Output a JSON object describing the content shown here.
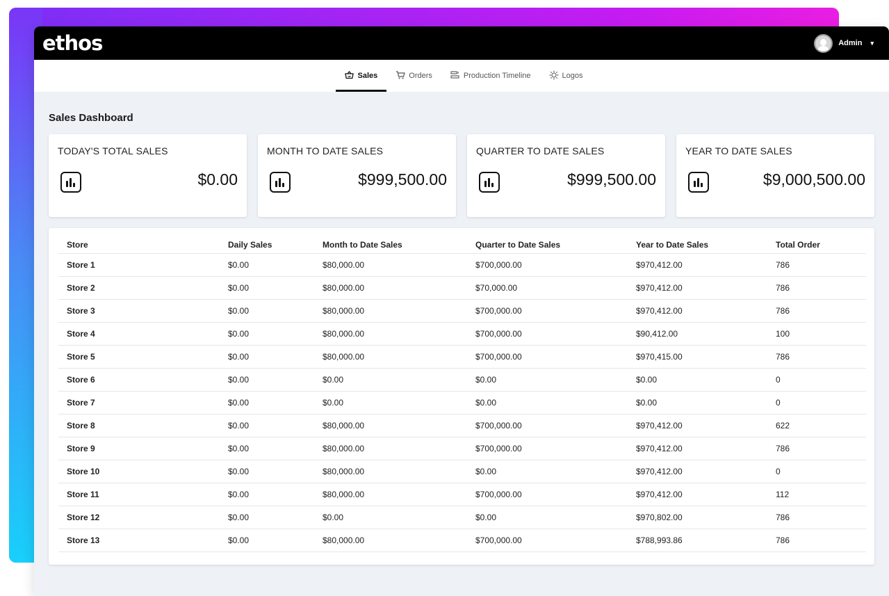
{
  "app": {
    "logo": "ethos"
  },
  "user": {
    "name": "Admin",
    "chevron": "⌄"
  },
  "tabs": [
    {
      "label": "Sales",
      "icon": "cart-basket-icon",
      "active": true
    },
    {
      "label": "Orders",
      "icon": "shopping-cart-icon",
      "active": false
    },
    {
      "label": "Production Timeline",
      "icon": "timeline-icon",
      "active": false
    },
    {
      "label": "Logos",
      "icon": "sparkle-icon",
      "active": false
    }
  ],
  "page": {
    "title": "Sales Dashboard"
  },
  "cards": [
    {
      "title": "TODAY'S TOTAL SALES",
      "value": "$0.00"
    },
    {
      "title": "MONTH TO DATE SALES",
      "value": "$999,500.00"
    },
    {
      "title": "QUARTER TO DATE SALES",
      "value": "$999,500.00"
    },
    {
      "title": "YEAR TO DATE SALES",
      "value": "$9,000,500.00"
    }
  ],
  "table": {
    "headers": [
      "Store",
      "Daily Sales",
      "Month to Date Sales",
      "Quarter to Date Sales",
      "Year to Date Sales",
      "Total Order"
    ],
    "rows": [
      [
        "Store 1",
        "$0.00",
        "$80,000.00",
        "$700,000.00",
        "$970,412.00",
        "786"
      ],
      [
        "Store 2",
        "$0.00",
        "$80,000.00",
        "$70,000.00",
        "$970,412.00",
        "786"
      ],
      [
        "Store 3",
        "$0.00",
        "$80,000.00",
        "$700,000.00",
        "$970,412.00",
        "786"
      ],
      [
        "Store 4",
        "$0.00",
        "$80,000.00",
        "$700,000.00",
        "$90,412.00",
        "100"
      ],
      [
        "Store 5",
        "$0.00",
        "$80,000.00",
        "$700,000.00",
        "$970,415.00",
        "786"
      ],
      [
        "Store 6",
        "$0.00",
        "$0.00",
        "$0.00",
        "$0.00",
        "0"
      ],
      [
        "Store 7",
        "$0.00",
        "$0.00",
        "$0.00",
        "$0.00",
        "0"
      ],
      [
        "Store 8",
        "$0.00",
        "$80,000.00",
        "$700,000.00",
        "$970,412.00",
        "622"
      ],
      [
        "Store 9",
        "$0.00",
        "$80,000.00",
        "$700,000.00",
        "$970,412.00",
        "786"
      ],
      [
        "Store 10",
        "$0.00",
        "$80,000.00",
        "$0.00",
        "$970,412.00",
        "0"
      ],
      [
        "Store 11",
        "$0.00",
        "$80,000.00",
        "$700,000.00",
        "$970,412.00",
        "112"
      ],
      [
        "Store 12",
        "$0.00",
        "$0.00",
        "$0.00",
        "$970,802.00",
        "786"
      ],
      [
        "Store 13",
        "$0.00",
        "$80,000.00",
        "$700,000.00",
        "$788,993.86",
        "786"
      ]
    ]
  }
}
